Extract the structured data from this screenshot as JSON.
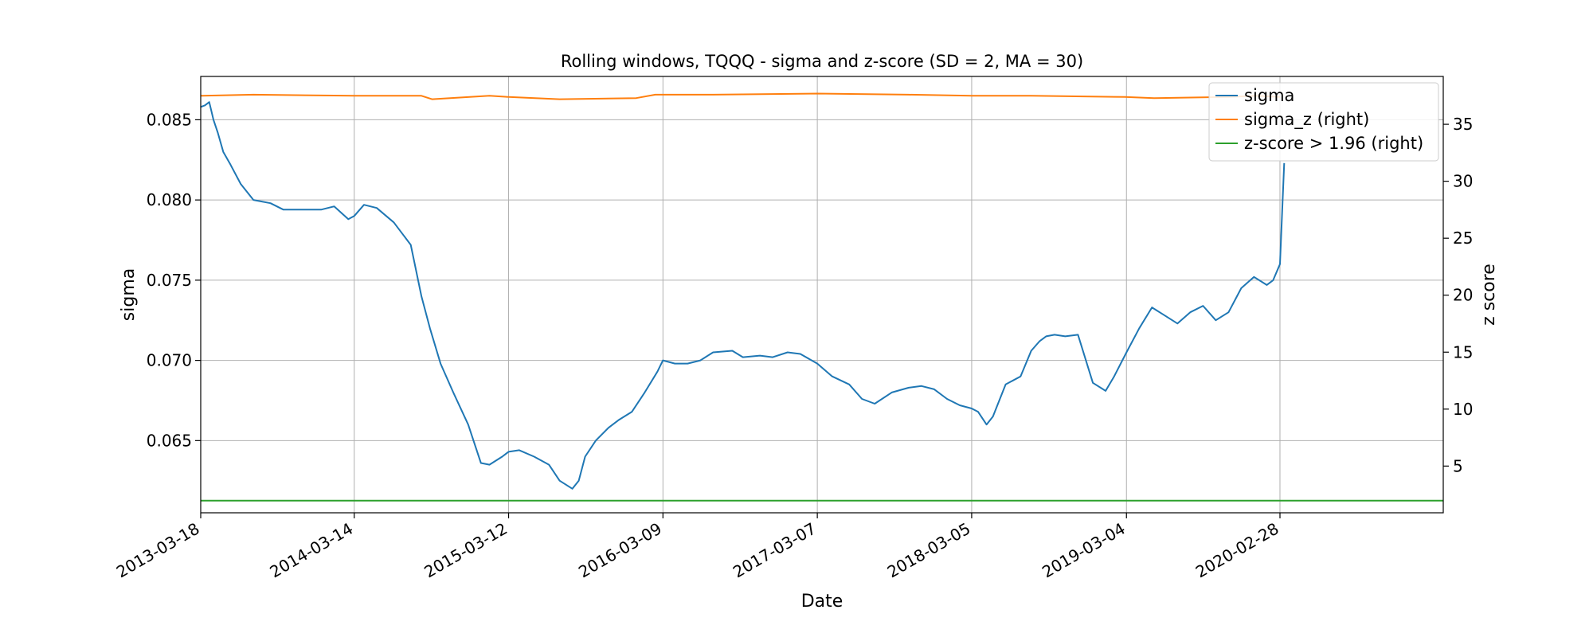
{
  "chart_data": {
    "type": "line",
    "title": "Rolling windows, TQQQ - sigma and z-score (SD = 2, MA = 30)",
    "xlabel": "Date",
    "ylabel": "sigma",
    "ylabel_right": "z score",
    "x_tick_labels": [
      "2013-03-18",
      "2014-03-14",
      "2015-03-12",
      "2016-03-09",
      "2017-03-07",
      "2018-03-05",
      "2019-03-04",
      "2020-02-28"
    ],
    "xlim": [
      "2013-03-18",
      "2021-03-18"
    ],
    "ylim": [
      0.0605,
      0.0877
    ],
    "y_ticks": [
      0.065,
      0.07,
      0.075,
      0.08,
      0.085
    ],
    "y_tick_labels": [
      "0.065",
      "0.070",
      "0.075",
      "0.080",
      "0.085"
    ],
    "ylim_right": [
      0.9,
      39.2
    ],
    "y2_ticks": [
      5,
      10,
      15,
      20,
      25,
      30,
      35
    ],
    "y2_tick_labels": [
      "5",
      "10",
      "15",
      "20",
      "25",
      "30",
      "35"
    ],
    "grid": true,
    "legend_position": "top-right",
    "series": [
      {
        "name": "sigma",
        "axis": "left",
        "color": "#1f77b4",
        "x": [
          "2013-03-18",
          "2013-03-28",
          "2013-04-07",
          "2013-04-17",
          "2013-04-27",
          "2013-05-10",
          "2013-05-27",
          "2013-06-20",
          "2013-07-20",
          "2013-08-29",
          "2013-09-28",
          "2013-11-07",
          "2013-12-27",
          "2014-01-26",
          "2014-02-28",
          "2014-03-14",
          "2014-04-06",
          "2014-05-06",
          "2014-06-15",
          "2014-07-25",
          "2014-08-19",
          "2014-09-08",
          "2014-10-03",
          "2014-11-02",
          "2014-12-07",
          "2015-01-06",
          "2015-01-26",
          "2015-02-25",
          "2015-03-12",
          "2015-04-06",
          "2015-05-11",
          "2015-06-15",
          "2015-07-10",
          "2015-08-09",
          "2015-08-24",
          "2015-09-08",
          "2015-10-03",
          "2015-11-02",
          "2015-11-27",
          "2015-12-27",
          "2016-01-26",
          "2016-02-25",
          "2016-03-09",
          "2016-04-06",
          "2016-05-06",
          "2016-06-05",
          "2016-07-05",
          "2016-08-19",
          "2016-09-13",
          "2016-10-23",
          "2016-11-22",
          "2016-12-27",
          "2017-01-26",
          "2017-03-07",
          "2017-04-11",
          "2017-05-21",
          "2017-06-20",
          "2017-07-20",
          "2017-08-29",
          "2017-10-08",
          "2017-11-07",
          "2017-12-07",
          "2018-01-06",
          "2018-02-05",
          "2018-03-05",
          "2018-03-20",
          "2018-04-09",
          "2018-04-24",
          "2018-05-24",
          "2018-06-28",
          "2018-07-23",
          "2018-08-12",
          "2018-08-27",
          "2018-09-16",
          "2018-10-11",
          "2018-11-10",
          "2018-12-15",
          "2019-01-14",
          "2019-02-03",
          "2019-03-04",
          "2019-04-03",
          "2019-05-03",
          "2019-06-02",
          "2019-07-02",
          "2019-08-01",
          "2019-08-31",
          "2019-09-30",
          "2019-10-30",
          "2019-11-29",
          "2019-12-29",
          "2020-01-28",
          "2020-02-12",
          "2020-02-28",
          "2020-03-09"
        ],
        "values": [
          0.0858,
          0.0859,
          0.0861,
          0.085,
          0.0842,
          0.083,
          0.0822,
          0.081,
          0.08,
          0.0798,
          0.0794,
          0.0794,
          0.0794,
          0.0796,
          0.0788,
          0.079,
          0.0797,
          0.0795,
          0.0786,
          0.0772,
          0.074,
          0.072,
          0.0698,
          0.068,
          0.066,
          0.0636,
          0.0635,
          0.064,
          0.0643,
          0.0644,
          0.064,
          0.0635,
          0.0625,
          0.062,
          0.0625,
          0.064,
          0.065,
          0.0658,
          0.0663,
          0.0668,
          0.068,
          0.0693,
          0.07,
          0.0698,
          0.0698,
          0.07,
          0.0705,
          0.0706,
          0.0702,
          0.0703,
          0.0702,
          0.0705,
          0.0704,
          0.0698,
          0.069,
          0.0685,
          0.0676,
          0.0673,
          0.068,
          0.0683,
          0.0684,
          0.0682,
          0.0676,
          0.0672,
          0.067,
          0.0668,
          0.066,
          0.0665,
          0.0685,
          0.069,
          0.0706,
          0.0712,
          0.0715,
          0.0716,
          0.0715,
          0.0716,
          0.0686,
          0.0681,
          0.069,
          0.0705,
          0.072,
          0.0733,
          0.0728,
          0.0723,
          0.073,
          0.0734,
          0.0725,
          0.073,
          0.0745,
          0.0752,
          0.0747,
          0.075,
          0.076,
          0.0823
        ]
      },
      {
        "name": "sigma_z (right)",
        "axis": "right",
        "color": "#ff7f0e",
        "x": [
          "2013-03-18",
          "2013-07-20",
          "2014-03-14",
          "2014-08-19",
          "2014-09-13",
          "2015-01-26",
          "2015-03-12",
          "2015-07-10",
          "2016-01-06",
          "2016-02-20",
          "2016-07-05",
          "2017-03-07",
          "2017-10-08",
          "2018-03-05",
          "2018-07-23",
          "2019-02-28",
          "2019-05-08",
          "2019-10-30",
          "2020-01-03",
          "2020-02-28"
        ],
        "values": [
          37.5,
          37.6,
          37.5,
          37.5,
          37.2,
          37.5,
          37.4,
          37.2,
          37.3,
          37.6,
          37.6,
          37.7,
          37.6,
          37.5,
          37.5,
          37.4,
          37.3,
          37.4,
          37.5,
          37.4
        ]
      },
      {
        "name": "z-score > 1.96 (right)",
        "axis": "right",
        "color": "#2ca02c",
        "x": [
          "2013-03-18",
          "2021-03-18"
        ],
        "values": [
          1.96,
          1.96
        ]
      }
    ]
  }
}
